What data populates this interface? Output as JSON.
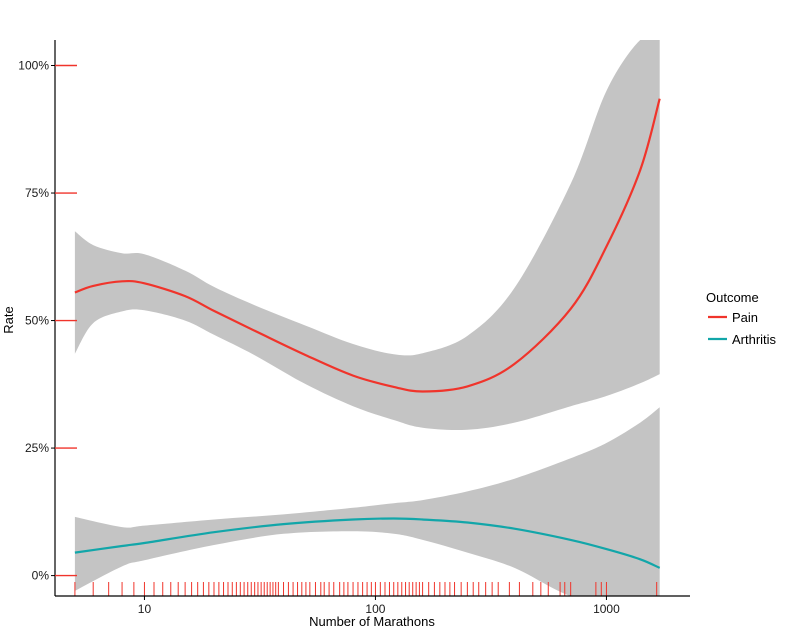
{
  "chart_data": {
    "type": "line",
    "xlabel": "Number of Marathons",
    "ylabel": "Rate",
    "x_scale": "log",
    "xlim": [
      4.1,
      2300
    ],
    "ylim": [
      -0.04,
      1.05
    ],
    "x_ticks": [
      {
        "value": 10,
        "label": "10"
      },
      {
        "value": 100,
        "label": "100"
      },
      {
        "value": 1000,
        "label": "1000"
      }
    ],
    "y_ticks": [
      {
        "value": 0,
        "label": "0%"
      },
      {
        "value": 0.25,
        "label": "25%"
      },
      {
        "value": 0.5,
        "label": "50%"
      },
      {
        "value": 0.75,
        "label": "75%"
      },
      {
        "value": 1.0,
        "label": "100%"
      }
    ],
    "grid": false,
    "legend": {
      "title": "Outcome",
      "placement": "right",
      "entries": [
        {
          "label": "Pain",
          "color": "#f0342b"
        },
        {
          "label": "Arthritis",
          "color": "#12a6a9"
        }
      ]
    },
    "ribbon_color": "#c4c4c4",
    "rug_color": "#f0342b",
    "series": [
      {
        "name": "Pain",
        "color": "#f0342b",
        "x": [
          5,
          6,
          8,
          10,
          15,
          20,
          30,
          50,
          80,
          120,
          160,
          250,
          400,
          700,
          1000,
          1400,
          1700
        ],
        "y": [
          0.555,
          0.568,
          0.577,
          0.573,
          0.548,
          0.519,
          0.48,
          0.432,
          0.392,
          0.37,
          0.361,
          0.371,
          0.415,
          0.523,
          0.645,
          0.795,
          0.935
        ],
        "lower": [
          0.435,
          0.495,
          0.518,
          0.52,
          0.5,
          0.472,
          0.432,
          0.375,
          0.332,
          0.305,
          0.29,
          0.286,
          0.3,
          0.332,
          0.352,
          0.377,
          0.395
        ],
        "upper": [
          0.675,
          0.648,
          0.632,
          0.63,
          0.598,
          0.566,
          0.53,
          0.49,
          0.454,
          0.434,
          0.436,
          0.47,
          0.564,
          0.768,
          0.95,
          1.05,
          1.05
        ]
      },
      {
        "name": "Arthritis",
        "color": "#12a6a9",
        "x": [
          5,
          8,
          10,
          20,
          40,
          80,
          120,
          160,
          250,
          400,
          700,
          1000,
          1400,
          1700
        ],
        "y": [
          0.045,
          0.058,
          0.064,
          0.085,
          0.101,
          0.11,
          0.112,
          0.11,
          0.104,
          0.092,
          0.07,
          0.052,
          0.032,
          0.015
        ],
        "lower": [
          -0.03,
          0.018,
          0.03,
          0.06,
          0.082,
          0.087,
          0.082,
          0.07,
          0.045,
          0.015,
          -0.04,
          -0.04,
          -0.04,
          -0.04
        ],
        "upper": [
          0.115,
          0.095,
          0.098,
          0.11,
          0.12,
          0.133,
          0.142,
          0.148,
          0.165,
          0.19,
          0.23,
          0.26,
          0.3,
          0.33
        ]
      }
    ],
    "rug": [
      5,
      6,
      7,
      8,
      9,
      10,
      11,
      12,
      13,
      14,
      15,
      16,
      17,
      18,
      19,
      20,
      21,
      22,
      23,
      24,
      25,
      26,
      27,
      28,
      29,
      30,
      31,
      32,
      33,
      34,
      35,
      36,
      37,
      38,
      40,
      42,
      44,
      46,
      48,
      50,
      52,
      55,
      58,
      60,
      63,
      66,
      70,
      73,
      76,
      80,
      84,
      88,
      92,
      96,
      100,
      105,
      110,
      115,
      120,
      125,
      130,
      135,
      140,
      145,
      150,
      155,
      160,
      170,
      180,
      190,
      200,
      210,
      220,
      235,
      250,
      265,
      280,
      300,
      320,
      340,
      380,
      420,
      480,
      520,
      560,
      630,
      660,
      700,
      900,
      950,
      1000,
      1650
    ]
  }
}
